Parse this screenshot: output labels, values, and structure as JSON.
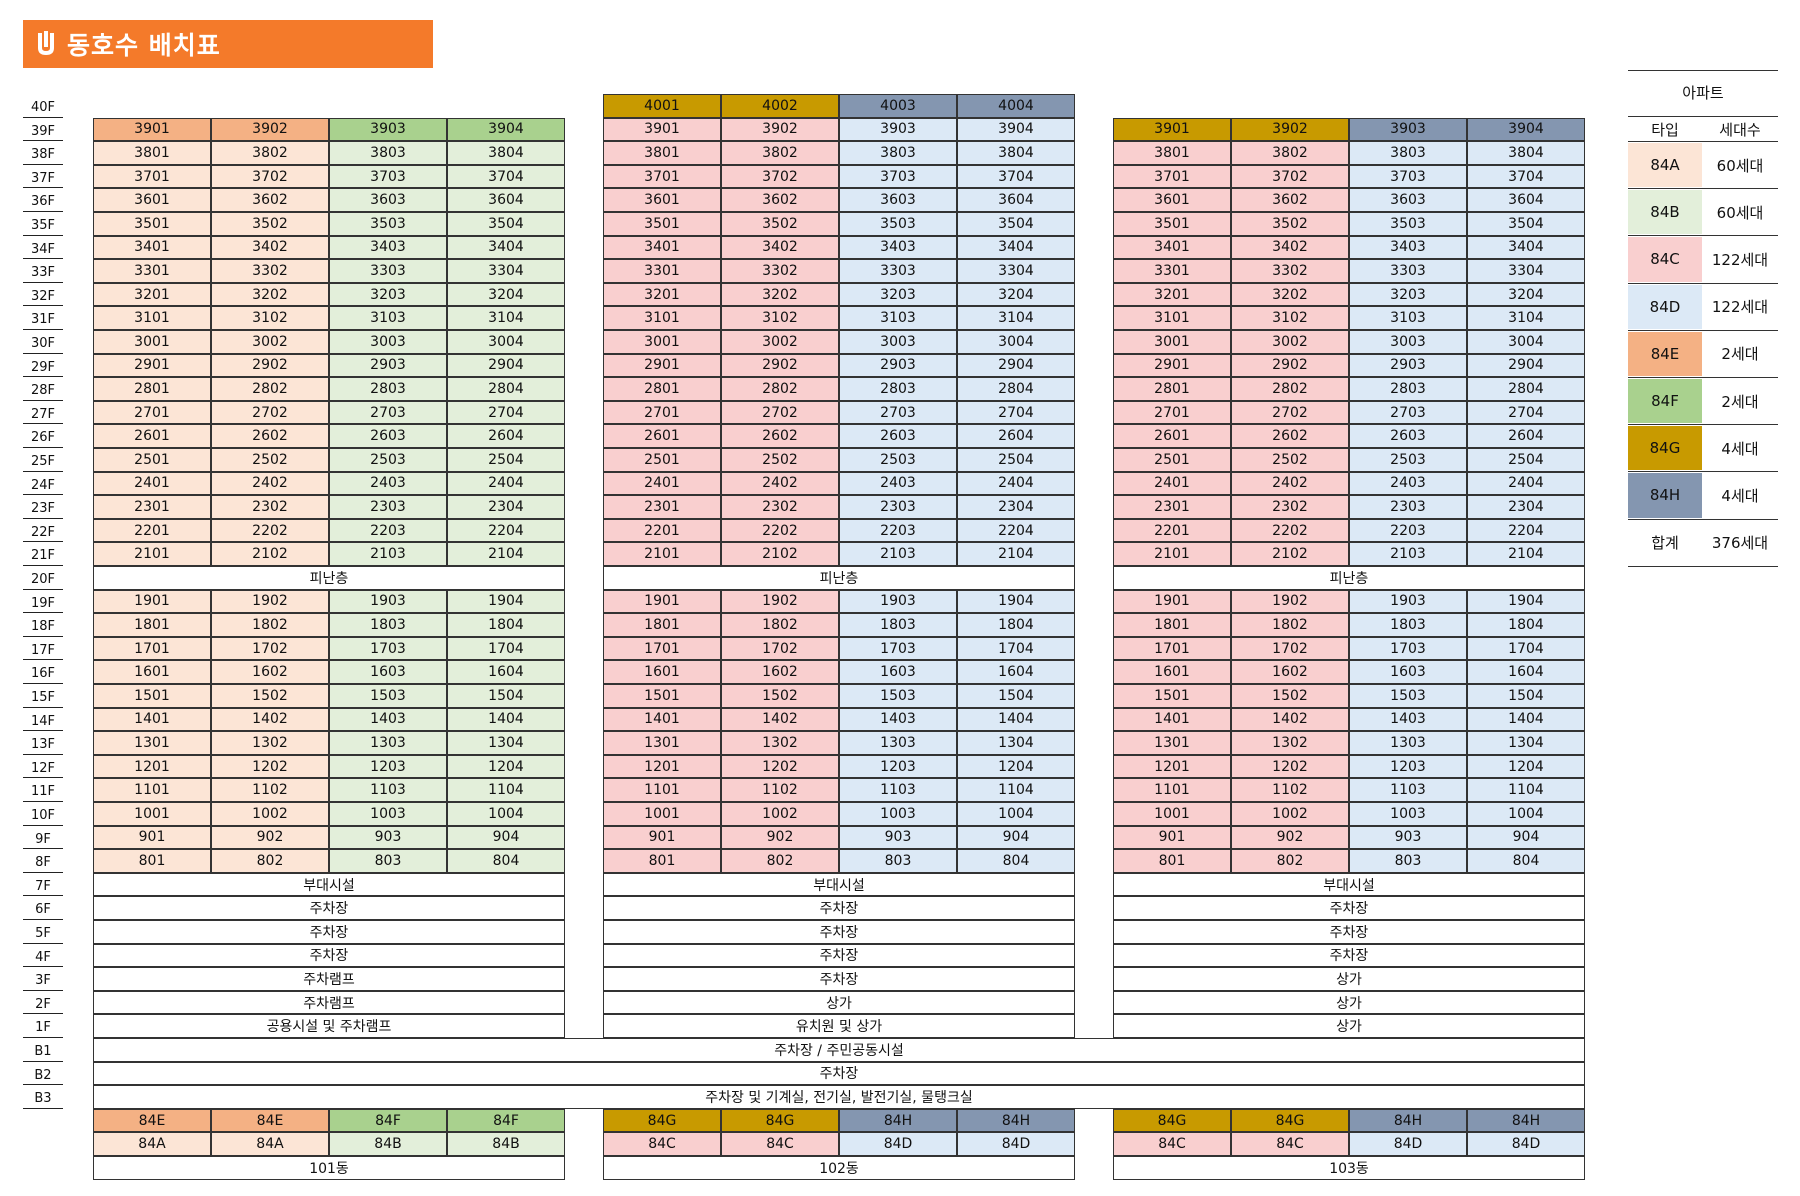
{
  "header": {
    "title": "동호수 배치표",
    "logo_icon": "u-logo-icon"
  },
  "colors": {
    "84A": "#FCE5D6",
    "84B": "#E3EFDA",
    "84C": "#F9CFCF",
    "84D": "#DCE9F6",
    "84E": "#F4B184",
    "84F": "#A9D18E",
    "84G": "#C89A00",
    "84H": "#8496B0",
    "accent": "#F47A2A"
  },
  "floors": [
    "40F",
    "39F",
    "38F",
    "37F",
    "36F",
    "35F",
    "34F",
    "33F",
    "32F",
    "31F",
    "30F",
    "29F",
    "28F",
    "27F",
    "26F",
    "25F",
    "24F",
    "23F",
    "22F",
    "21F",
    "20F",
    "19F",
    "18F",
    "17F",
    "16F",
    "15F",
    "14F",
    "13F",
    "12F",
    "11F",
    "10F",
    "9F",
    "8F",
    "7F",
    "6F",
    "5F",
    "4F",
    "3F",
    "2F",
    "1F",
    "B1",
    "B2",
    "B3"
  ],
  "buildings": [
    {
      "name": "101동",
      "top_types": [
        "84E",
        "84E",
        "84F",
        "84F"
      ],
      "unit_types": [
        "84A",
        "84A",
        "84B",
        "84B"
      ],
      "refuge_label": "피난층",
      "lower_floors": [
        "부대시설",
        "주차장",
        "주차장",
        "주차장",
        "주차램프",
        "주차램프",
        "공용시설 및 주차램프"
      ],
      "footer_types_row1": [
        "84E",
        "84E",
        "84F",
        "84F"
      ],
      "footer_types_row2": [
        "84A",
        "84A",
        "84B",
        "84B"
      ]
    },
    {
      "name": "102동",
      "top_types": [
        "84G",
        "84G",
        "84H",
        "84H"
      ],
      "unit_types": [
        "84C",
        "84C",
        "84D",
        "84D"
      ],
      "refuge_label": "피난층",
      "lower_floors": [
        "부대시설",
        "주차장",
        "주차장",
        "주차장",
        "주차장",
        "상가",
        "유치원 및 상가"
      ],
      "footer_types_row1": [
        "84G",
        "84G",
        "84H",
        "84H"
      ],
      "footer_types_row2": [
        "84C",
        "84C",
        "84D",
        "84D"
      ]
    },
    {
      "name": "103동",
      "top_types": [
        "84G",
        "84G",
        "84H",
        "84H"
      ],
      "unit_types": [
        "84C",
        "84C",
        "84D",
        "84D"
      ],
      "refuge_label": "피난층",
      "lower_floors": [
        "부대시설",
        "주차장",
        "주차장",
        "주차장",
        "상가",
        "상가",
        "상가"
      ],
      "footer_types_row1": [
        "84G",
        "84G",
        "84H",
        "84H"
      ],
      "footer_types_row2": [
        "84C",
        "84C",
        "84D",
        "84D"
      ]
    }
  ],
  "basement": [
    "주차장 / 주민공동시설",
    "주차장",
    "주차장 및 기계실, 전기실, 발전기실, 물탱크실"
  ],
  "legend": {
    "title": "아파트",
    "col_type": "타입",
    "col_count": "세대수",
    "rows": [
      {
        "type": "84A",
        "count": "60세대"
      },
      {
        "type": "84B",
        "count": "60세대"
      },
      {
        "type": "84C",
        "count": "122세대"
      },
      {
        "type": "84D",
        "count": "122세대"
      },
      {
        "type": "84E",
        "count": "2세대"
      },
      {
        "type": "84F",
        "count": "2세대"
      },
      {
        "type": "84G",
        "count": "4세대"
      },
      {
        "type": "84H",
        "count": "4세대"
      }
    ],
    "total_label": "합계",
    "total_count": "376세대"
  }
}
